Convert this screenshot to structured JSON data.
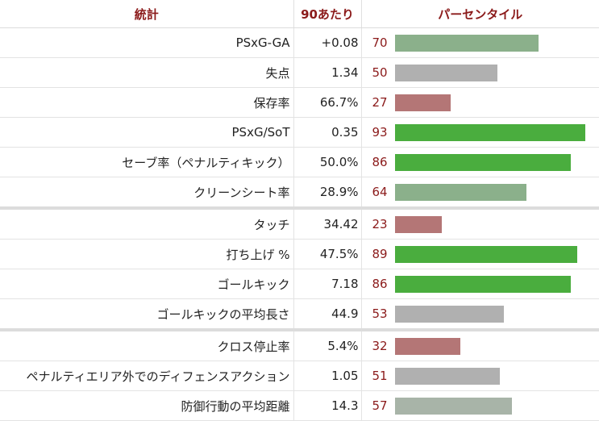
{
  "header": {
    "stat": "統計",
    "per90": "90あたり",
    "percentile": "パーセンタイル"
  },
  "colors": {
    "high": "#4aad3e",
    "mid_high": "#8bb08b",
    "average": "#b0b0b0",
    "low": "#b47676",
    "percentile_text": "#8b1a1a"
  },
  "rows": [
    {
      "stat": "PSxG-GA",
      "per90": "+0.08",
      "percentile": "70",
      "pct_value": 70,
      "color": "#8bb08b"
    },
    {
      "stat": "失点",
      "per90": "1.34",
      "percentile": "50",
      "pct_value": 50,
      "color": "#b0b0b0"
    },
    {
      "stat": "保存率",
      "per90": "66.7%",
      "percentile": "27",
      "pct_value": 27,
      "color": "#b47676"
    },
    {
      "stat": "PSxG/SoT",
      "per90": "0.35",
      "percentile": "93",
      "pct_value": 93,
      "color": "#4aad3e"
    },
    {
      "stat": "セーブ率（ペナルティキック）",
      "per90": "50.0%",
      "percentile": "86",
      "pct_value": 86,
      "color": "#4aad3e"
    },
    {
      "stat": "クリーンシート率",
      "per90": "28.9%",
      "percentile": "64",
      "pct_value": 64,
      "color": "#8bb08b"
    },
    {
      "stat": "タッチ",
      "per90": "34.42",
      "percentile": "23",
      "pct_value": 23,
      "color": "#b47676"
    },
    {
      "stat": "打ち上げ %",
      "per90": "47.5%",
      "percentile": "89",
      "pct_value": 89,
      "color": "#4aad3e"
    },
    {
      "stat": "ゴールキック",
      "per90": "7.18",
      "percentile": "86",
      "pct_value": 86,
      "color": "#4aad3e"
    },
    {
      "stat": "ゴールキックの平均長さ",
      "per90": "44.9",
      "percentile": "53",
      "pct_value": 53,
      "color": "#b0b0b0"
    },
    {
      "stat": "クロス停止率",
      "per90": "5.4%",
      "percentile": "32",
      "pct_value": 32,
      "color": "#b47676"
    },
    {
      "stat": "ペナルティエリア外でのディフェンスアクション",
      "per90": "1.05",
      "percentile": "51",
      "pct_value": 51,
      "color": "#b0b0b0"
    },
    {
      "stat": "防御行動の平均距離",
      "per90": "14.3",
      "percentile": "57",
      "pct_value": 57,
      "color": "#a8b4a8"
    }
  ]
}
